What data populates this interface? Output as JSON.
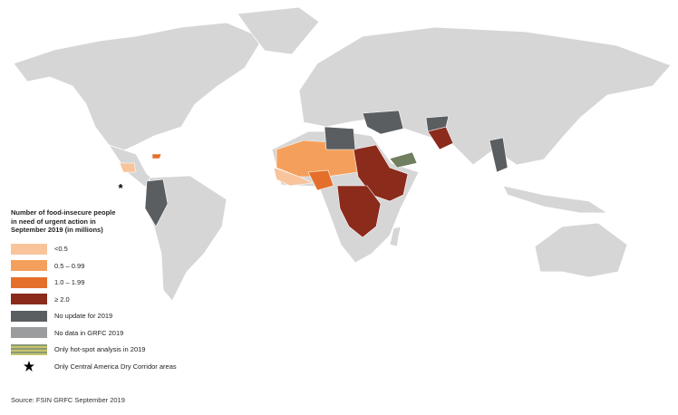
{
  "legend": {
    "title": "Number of food-insecure people in need of urgent action in September 2019 (in millions)",
    "items": [
      {
        "label": "<0.5",
        "color": "#f8c49c"
      },
      {
        "label": "0.5 – 0.99",
        "color": "#f4a05c"
      },
      {
        "label": "1.0 – 1.99",
        "color": "#e46f2a"
      },
      {
        "label": "≥ 2.0",
        "color": "#8b2b1c"
      },
      {
        "label": "No update for 2019",
        "color": "#5b5e61"
      },
      {
        "label": "No data in GRFC 2019",
        "color": "#9a9c9e"
      },
      {
        "label": "Only hot-spot analysis in 2019"
      },
      {
        "label": "Only Central America Dry Corridor areas"
      }
    ]
  },
  "source": "Source: FSIN GRFC September 2019"
}
